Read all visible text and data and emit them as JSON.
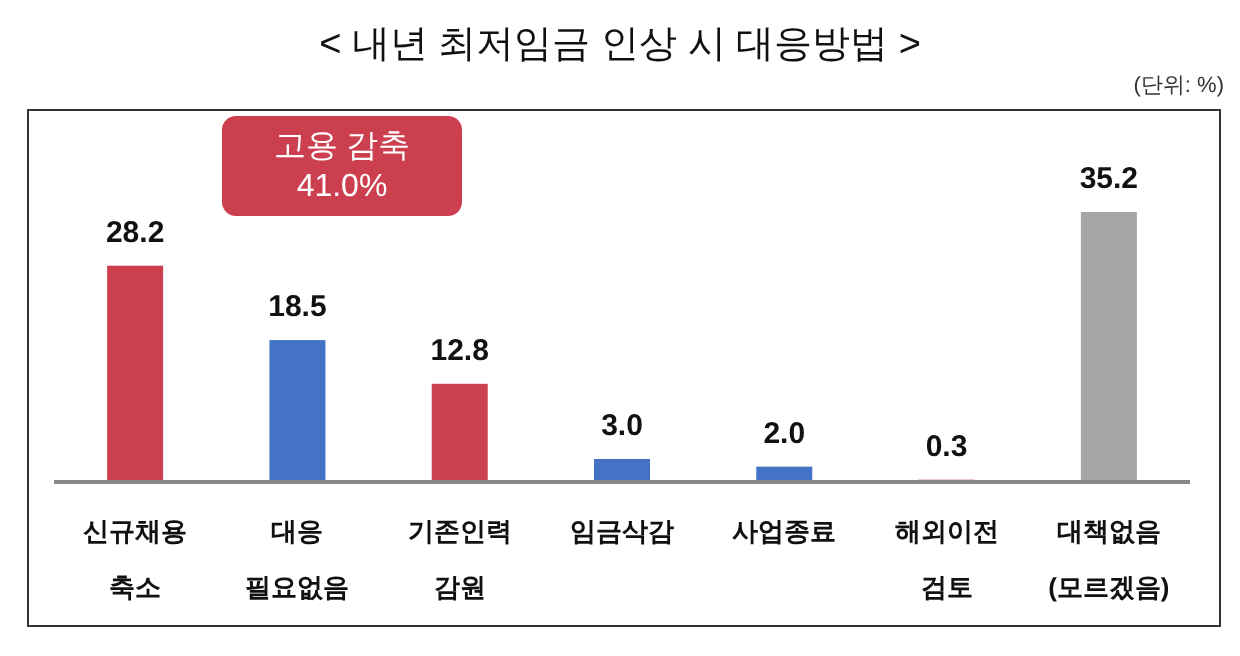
{
  "chart_data": {
    "type": "bar",
    "title": "< 내년 최저임금 인상 시 대응방법 >",
    "categories": [
      "신규채용 축소",
      "대응 필요없음",
      "기존인력 감원",
      "임금삭감",
      "사업종료",
      "해외이전 검토",
      "대책없음 (모르겠음)"
    ],
    "values": [
      28.2,
      18.5,
      12.8,
      3.0,
      2.0,
      0.3,
      35.2
    ],
    "colors": [
      "#cc3f4f",
      "#4472c4",
      "#cc3f4f",
      "#4472c4",
      "#4472c4",
      "#cc3f4f",
      "#a6a6a6"
    ],
    "value_labels": [
      "28.2",
      "18.5",
      "12.8",
      "3.0",
      "2.0",
      "0.3",
      "35.2"
    ],
    "annotations": [
      "고용 감축\n41.0%",
      "(단위: %)"
    ]
  }
}
